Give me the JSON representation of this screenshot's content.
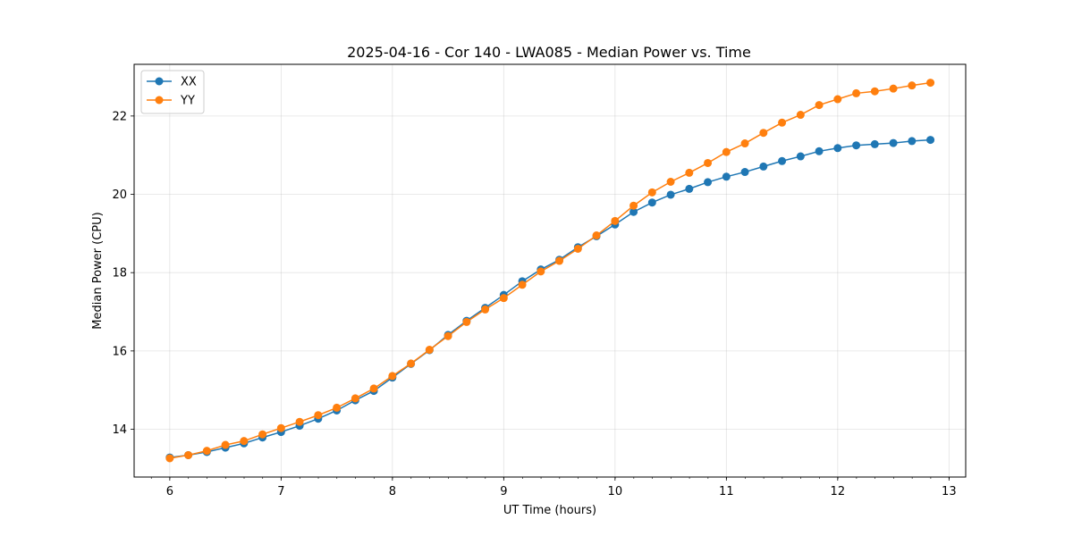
{
  "chart_data": {
    "type": "line",
    "title": "2025-04-16 - Cor 140 - LWA085 - Median Power vs. Time",
    "xlabel": "UT Time (hours)",
    "ylabel": "Median Power (CPU)",
    "xlim": [
      5.68,
      13.15
    ],
    "ylim": [
      12.78,
      23.32
    ],
    "xticks": [
      6,
      7,
      8,
      9,
      10,
      11,
      12,
      13
    ],
    "yticks": [
      14,
      16,
      18,
      20,
      22
    ],
    "x_minor_step": 0.1667,
    "grid": true,
    "legend_position": "top-left",
    "x": [
      6.0,
      6.1667,
      6.3333,
      6.5,
      6.6667,
      6.8333,
      7.0,
      7.1667,
      7.3333,
      7.5,
      7.6667,
      7.8333,
      8.0,
      8.1667,
      8.3333,
      8.5,
      8.6667,
      8.8333,
      9.0,
      9.1667,
      9.3333,
      9.5,
      9.6667,
      9.8333,
      10.0,
      10.1667,
      10.3333,
      10.5,
      10.6667,
      10.8333,
      11.0,
      11.1667,
      11.3333,
      11.5,
      11.6667,
      11.8333,
      12.0,
      12.1667,
      12.3333,
      12.5,
      12.6667,
      12.8333
    ],
    "series": [
      {
        "name": "XX",
        "color": "#1f77b4",
        "values": [
          13.28,
          13.34,
          13.42,
          13.53,
          13.64,
          13.79,
          13.93,
          14.09,
          14.27,
          14.48,
          14.74,
          14.98,
          15.32,
          15.67,
          16.02,
          16.41,
          16.77,
          17.1,
          17.43,
          17.78,
          18.08,
          18.33,
          18.65,
          18.93,
          19.23,
          19.55,
          19.79,
          19.99,
          20.14,
          20.31,
          20.45,
          20.57,
          20.71,
          20.85,
          20.97,
          21.1,
          21.18,
          21.25,
          21.28,
          21.31,
          21.36,
          21.39
        ]
      },
      {
        "name": "YY",
        "color": "#ff7f0e",
        "values": [
          13.26,
          13.34,
          13.45,
          13.6,
          13.7,
          13.87,
          14.03,
          14.19,
          14.36,
          14.55,
          14.79,
          15.04,
          15.36,
          15.68,
          16.03,
          16.38,
          16.74,
          17.06,
          17.35,
          17.69,
          18.03,
          18.3,
          18.61,
          18.95,
          19.32,
          19.71,
          20.05,
          20.32,
          20.55,
          20.8,
          21.08,
          21.3,
          21.57,
          21.83,
          22.03,
          22.28,
          22.43,
          22.58,
          22.63,
          22.7,
          22.78,
          22.85
        ]
      }
    ]
  }
}
